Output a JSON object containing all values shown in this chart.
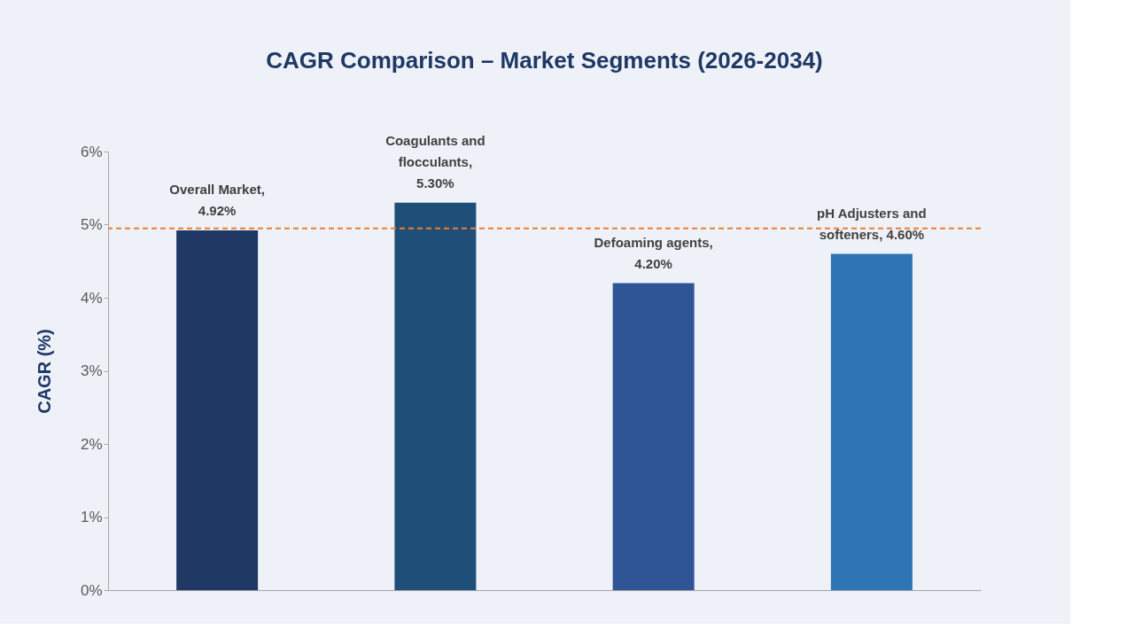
{
  "chart_data": {
    "type": "bar",
    "title": "CAGR Comparison – Market Segments (2026-2034)",
    "ylabel": "CAGR (%)",
    "categories": [
      null,
      null,
      null,
      null
    ],
    "values": [
      4.92,
      5.3,
      4.2,
      4.6
    ],
    "colors": [
      "#203864",
      "#1f4e79",
      "#2f5597",
      "#2e75b6"
    ],
    "value_labels": [
      "Overall Market, 4.92%",
      "Coagulants and flocculants, 5.30%",
      "Defoaming agents, 4.20%",
      "pH Adjusters and softeners, 4.60%"
    ],
    "ylim": [
      0,
      6
    ],
    "yticks": [
      {
        "value": 0,
        "label": "0%"
      },
      {
        "value": 1,
        "label": "1%"
      },
      {
        "value": 2,
        "label": "2%"
      },
      {
        "value": 3,
        "label": "3%"
      },
      {
        "value": 4,
        "label": "4%"
      },
      {
        "value": 5,
        "label": "5%"
      },
      {
        "value": 6,
        "label": "6%"
      }
    ],
    "ref_lines": [
      {
        "axis": "y",
        "value": 4.95,
        "color": "#ed7d31",
        "line_style": "dashed"
      }
    ],
    "tick_labels": "y",
    "grid": false
  }
}
